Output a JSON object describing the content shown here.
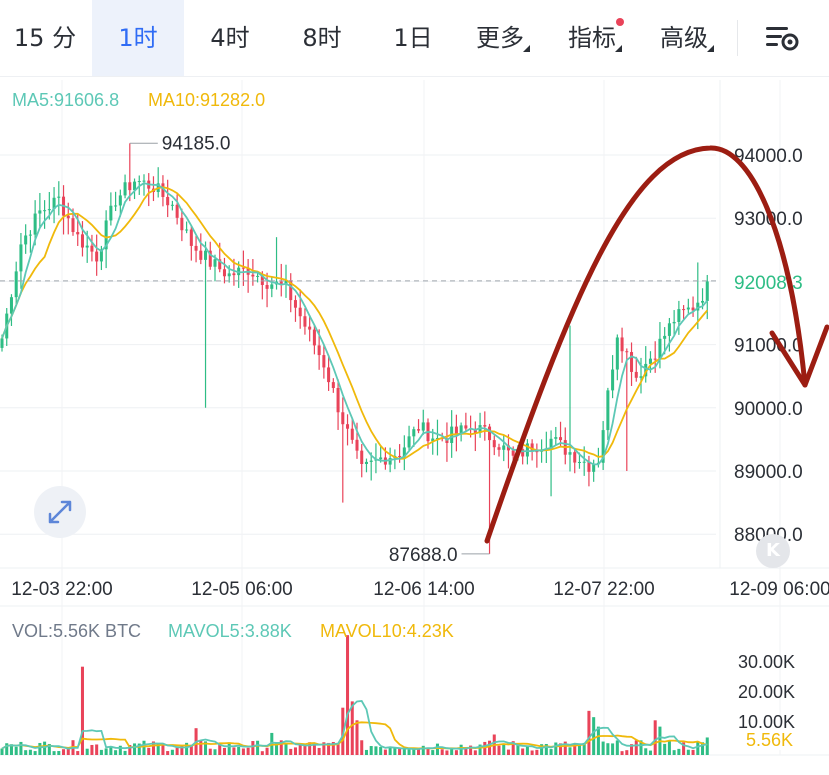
{
  "tabs": [
    {
      "label": "15 分"
    },
    {
      "label": "1时",
      "active": true
    },
    {
      "label": "4时"
    },
    {
      "label": "8时"
    },
    {
      "label": "1日"
    },
    {
      "label": "更多",
      "dropdown": true
    },
    {
      "label": "指标",
      "dropdown": true,
      "notification": true
    },
    {
      "label": "高级",
      "dropdown": true
    }
  ],
  "settings_icon": "chart-settings-icon",
  "colors": {
    "up": "#2ebd85",
    "down": "#e94359",
    "ma5": "#5dc8b6",
    "ma10": "#f0b90b",
    "tab_active": "#2f6cf5",
    "annotation": "#9c1d12"
  },
  "indicators": {
    "price": [
      {
        "label": "MA5:91606.8",
        "color": "#5dc8b6"
      },
      {
        "label": "MA10:91282.0",
        "color": "#f0b90b"
      }
    ],
    "volume": [
      {
        "label": "VOL:5.56K BTC",
        "color": "#707a8a"
      },
      {
        "label": "MAVOL5:3.88K",
        "color": "#5dc8b6"
      },
      {
        "label": "MAVOL10:4.23K",
        "color": "#f0b90b"
      }
    ]
  },
  "expand_icon": "expand-icon",
  "k_badge": "K",
  "chart_data": {
    "type": "candlestick",
    "interval": "1h",
    "price_axis": {
      "ticks": [
        "94000.0",
        "93000.0",
        "92000.0",
        "91000.0",
        "90000.0",
        "89000.0",
        "88000.0"
      ],
      "range": [
        87600,
        94800
      ]
    },
    "time_axis": {
      "labels": [
        "12-03 22:00",
        "12-05 06:00",
        "12-06 14:00",
        "12-07 22:00",
        "12-09 06:00"
      ]
    },
    "current_price": "92008.3",
    "high_marker": "94185.0",
    "low_marker": "87688.0",
    "close_anchors": [
      [
        0,
        91100
      ],
      [
        4,
        92600
      ],
      [
        8,
        93100
      ],
      [
        12,
        93300
      ],
      [
        16,
        92700
      ],
      [
        20,
        92400
      ],
      [
        24,
        93300
      ],
      [
        28,
        93600
      ],
      [
        32,
        93500
      ],
      [
        36,
        93200
      ],
      [
        40,
        92600
      ],
      [
        44,
        92300
      ],
      [
        48,
        92100
      ],
      [
        52,
        92200
      ],
      [
        56,
        92000
      ],
      [
        60,
        91900
      ],
      [
        64,
        91300
      ],
      [
        68,
        90700
      ],
      [
        72,
        89800
      ],
      [
        76,
        89000
      ],
      [
        80,
        89200
      ],
      [
        84,
        89300
      ],
      [
        88,
        89700
      ],
      [
        92,
        89500
      ],
      [
        96,
        89600
      ],
      [
        100,
        89700
      ],
      [
        104,
        89500
      ],
      [
        108,
        89200
      ],
      [
        112,
        89400
      ],
      [
        116,
        89500
      ],
      [
        120,
        89300
      ],
      [
        124,
        89100
      ],
      [
        126,
        89200
      ],
      [
        130,
        91200
      ],
      [
        134,
        90500
      ],
      [
        138,
        90900
      ],
      [
        142,
        91400
      ],
      [
        146,
        91600
      ],
      [
        150,
        92000
      ]
    ],
    "volume_axis": {
      "ticks": [
        "30.00K",
        "20.00K",
        "10.00K"
      ],
      "max": 39000
    },
    "current_volume": "5.56K"
  }
}
